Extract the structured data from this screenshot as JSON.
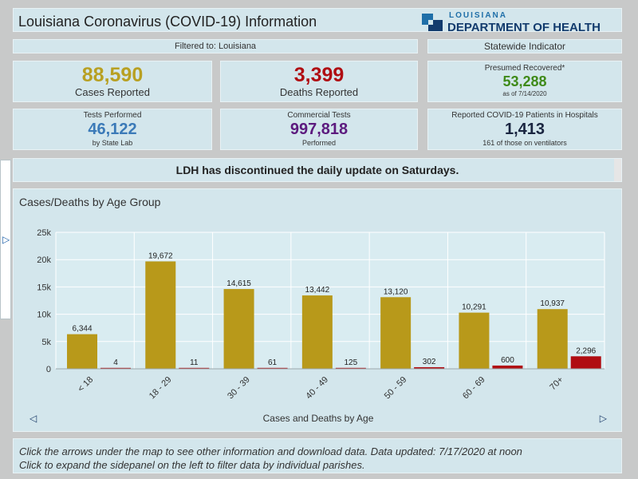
{
  "header": {
    "title": "Louisiana Coronavirus (COVID-19) Information",
    "logo_state": "LOUISIANA",
    "logo_dept": "DEPARTMENT OF HEALTH"
  },
  "filter": {
    "label": "Filtered to: Louisiana"
  },
  "statewide": {
    "label": "Statewide Indicator"
  },
  "cards": {
    "cases": {
      "value": "88,590",
      "label": "Cases Reported",
      "color": "#b8a022"
    },
    "deaths": {
      "value": "3,399",
      "label": "Deaths Reported",
      "color": "#b00d12"
    },
    "recovered": {
      "title": "Presumed Recovered*",
      "value": "53,288",
      "note": "as of 7/14/2020",
      "color": "#3f8a19"
    },
    "tests": {
      "title": "Tests Performed",
      "value": "46,122",
      "note": "by State Lab",
      "color": "#3b7ab8"
    },
    "commercial": {
      "title": "Commercial Tests",
      "value": "997,818",
      "note": "Performed",
      "color": "#5c1a7e"
    },
    "hospital": {
      "title": "Reported COVID-19 Patients in Hospitals",
      "value": "1,413",
      "note": "161 of those on ventilators",
      "color": "#1a2540"
    }
  },
  "notice": "LDH has discontinued the daily update on Saturdays.",
  "chart": {
    "title": "Cases/Deaths by Age Group"
  },
  "chart_data": {
    "type": "bar",
    "categories": [
      "< 18",
      "18 - 29",
      "30 - 39",
      "40 - 49",
      "50 - 59",
      "60 - 69",
      "70+"
    ],
    "series": [
      {
        "values": [
          6344,
          19672,
          14615,
          13442,
          13120,
          10291,
          10937
        ],
        "labels": [
          "6,344",
          "19,672",
          "14,615",
          "13,442",
          "13,120",
          "10,291",
          "10,937"
        ],
        "color": "#b8991a"
      },
      {
        "values": [
          4,
          11,
          61,
          125,
          302,
          600,
          2296
        ],
        "labels": [
          "4",
          "11",
          "61",
          "125",
          "302",
          "600",
          "2,296"
        ],
        "color": "#b00d12"
      }
    ],
    "yticks": [
      0,
      5000,
      10000,
      15000,
      20000,
      25000
    ],
    "ytick_labels": [
      "0",
      "5k",
      "10k",
      "15k",
      "20k",
      "25k"
    ],
    "ylim": [
      0,
      25000
    ],
    "grid": true
  },
  "nav": {
    "label": "Cases and Deaths by Age"
  },
  "footer": {
    "line1": "Click the arrows under the map to see other information and download data. Data updated: 7/17/2020 at noon",
    "line2": "Click to expand the sidepanel on the left to filter data by individual parishes."
  }
}
